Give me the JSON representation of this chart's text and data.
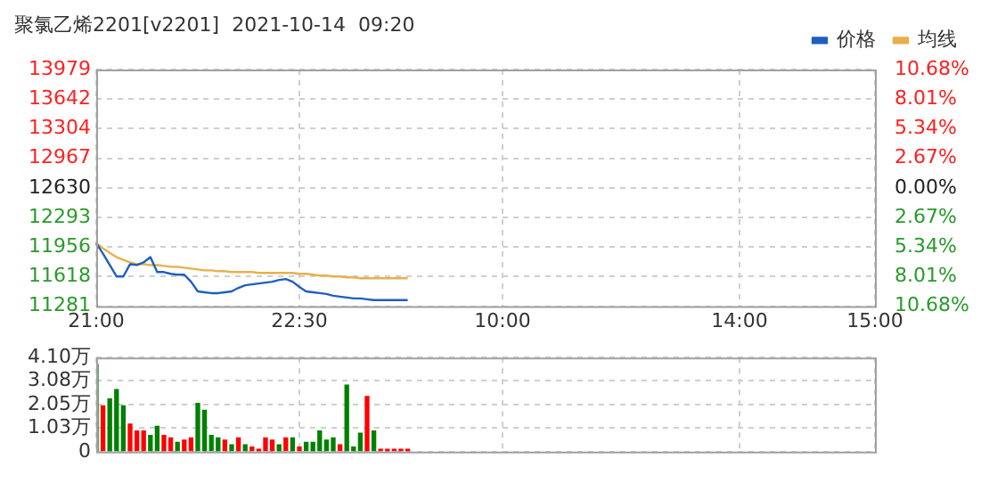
{
  "chart_data": [
    {
      "type": "line",
      "title": "聚氯乙烯2201[v2201]  2021-10-14  09:20",
      "legend": "top right",
      "grid": true,
      "categories": [
        "21:00",
        null,
        null,
        null,
        null,
        null,
        null,
        null,
        null,
        null,
        null,
        null,
        null,
        null,
        null,
        null,
        null,
        null,
        null,
        null,
        null,
        null,
        null,
        null,
        null,
        null,
        null,
        null,
        null,
        null,
        "22:30",
        null,
        null,
        null,
        null,
        null,
        null,
        null,
        null,
        null,
        null,
        null,
        null,
        null,
        null,
        null,
        null,
        null,
        null,
        null,
        null,
        null,
        null,
        null,
        null,
        null,
        null,
        null,
        null,
        null,
        "10:00",
        null,
        null,
        null,
        null,
        null,
        null,
        null,
        null,
        null,
        null,
        null,
        null,
        null,
        null,
        null,
        null,
        null,
        null,
        null,
        null,
        null,
        null,
        null,
        null,
        null,
        null,
        null,
        null,
        null,
        null,
        null,
        null,
        null,
        null,
        "14:00",
        null,
        null,
        null,
        null,
        null,
        null,
        null,
        null,
        null,
        null,
        null,
        null,
        null,
        null,
        null,
        null,
        null,
        null,
        null,
        "15:00"
      ],
      "ylim": [
        11281,
        13979
      ],
      "yticks": [
        11281,
        11618,
        11956,
        12293,
        12630,
        12967,
        13304,
        13642,
        13979
      ],
      "y2lim": [
        -10.68,
        10.68
      ],
      "y2ticks": [
        {
          "value": -10.68,
          "label": "10.68%"
        },
        {
          "value": -8.01,
          "label": "8.01%"
        },
        {
          "value": -5.34,
          "label": "5.34%"
        },
        {
          "value": -2.67,
          "label": "2.67%"
        },
        {
          "value": 0,
          "label": "0.00%"
        },
        {
          "value": 2.67,
          "label": "2.67%"
        },
        {
          "value": 5.34,
          "label": "5.34%"
        },
        {
          "value": 8.01,
          "label": "8.01%"
        },
        {
          "value": 10.68,
          "label": "10.68%"
        }
      ],
      "series": [
        {
          "name": "价格",
          "color": "#1f5fbf",
          "values": [
            12000,
            11880,
            11750,
            11620,
            11620,
            11760,
            11750,
            11780,
            11840,
            11670,
            11670,
            11650,
            11640,
            11640,
            11560,
            11450,
            11440,
            11430,
            11430,
            11440,
            11450,
            11490,
            11520,
            11530,
            11540,
            11550,
            11560,
            11580,
            11590,
            11560,
            11500,
            11450,
            11440,
            11430,
            11420,
            11400,
            11390,
            11380,
            11370,
            11370,
            11360,
            11350,
            11350,
            11350,
            11350,
            11350,
            11350,
            null,
            null,
            null,
            null,
            null,
            null,
            null,
            null,
            null,
            null,
            null,
            null,
            null,
            null,
            null,
            null,
            null,
            null,
            null,
            null,
            null,
            null,
            null,
            null,
            null,
            null,
            null,
            null,
            null,
            null,
            null,
            null,
            null,
            null,
            null,
            null,
            null,
            null,
            null,
            null,
            null,
            null,
            null,
            null,
            null,
            null,
            null,
            null,
            null,
            null,
            null,
            null,
            null,
            null,
            null,
            null,
            null,
            null,
            null,
            null,
            null,
            null,
            null,
            null,
            null,
            null,
            null,
            null,
            null
          ]
        },
        {
          "name": "均线",
          "color": "#e8b04a",
          "values": [
            12000,
            11940,
            11890,
            11840,
            11810,
            11780,
            11760,
            11760,
            11750,
            11750,
            11740,
            11730,
            11730,
            11720,
            11710,
            11700,
            11690,
            11690,
            11680,
            11680,
            11670,
            11670,
            11670,
            11670,
            11660,
            11660,
            11660,
            11660,
            11660,
            11660,
            11650,
            11650,
            11640,
            11630,
            11630,
            11620,
            11620,
            11610,
            11610,
            11600,
            11600,
            11600,
            11600,
            11600,
            11600,
            11600,
            11600,
            null,
            null,
            null,
            null,
            null,
            null,
            null,
            null,
            null,
            null,
            null,
            null,
            null,
            null,
            null,
            null,
            null,
            null,
            null,
            null,
            null,
            null,
            null,
            null,
            null,
            null,
            null,
            null,
            null,
            null,
            null,
            null,
            null,
            null,
            null,
            null,
            null,
            null,
            null,
            null,
            null,
            null,
            null,
            null,
            null,
            null,
            null,
            null,
            null,
            null,
            null,
            null,
            null,
            null,
            null,
            null,
            null,
            null,
            null,
            null,
            null,
            null,
            null,
            null,
            null,
            null,
            null,
            null,
            null
          ]
        }
      ]
    },
    {
      "type": "bar",
      "grid": true,
      "tick_labels": "y",
      "categories": [
        null,
        null,
        null,
        null,
        null,
        null,
        null,
        null,
        null,
        null,
        null,
        null,
        null,
        null,
        null,
        null,
        null,
        null,
        null,
        null,
        null,
        null,
        null,
        null,
        null,
        null,
        null,
        null,
        null,
        null,
        null,
        null,
        null,
        null,
        null,
        null,
        null,
        null,
        null,
        null,
        null,
        null,
        null,
        null,
        null,
        null,
        null,
        null,
        null,
        null,
        null,
        null,
        null,
        null,
        null,
        null,
        null,
        null,
        null,
        null,
        null,
        null,
        null,
        null,
        null,
        null,
        null,
        null,
        null,
        null,
        null,
        null,
        null,
        null,
        null,
        null,
        null,
        null,
        null,
        null,
        null,
        null,
        null,
        null,
        null,
        null,
        null,
        null,
        null,
        null,
        null,
        null,
        null,
        null,
        null,
        null,
        null,
        null,
        null,
        null,
        null,
        null,
        null,
        null,
        null,
        null,
        null,
        null,
        null,
        null,
        null,
        null,
        null,
        null,
        null,
        null
      ],
      "ylim": [
        0,
        4.1
      ],
      "yticks": [
        0,
        {
          "value": 1.03,
          "label": "1.03万"
        },
        {
          "value": 2.05,
          "label": "2.05万"
        },
        {
          "value": 3.08,
          "label": "3.08万"
        },
        {
          "value": 4.1,
          "label": "4.10万"
        }
      ],
      "values": [
        3.8,
        2.0,
        2.3,
        2.7,
        2.0,
        1.2,
        0.9,
        0.9,
        0.7,
        1.1,
        0.7,
        0.6,
        0.4,
        0.5,
        0.6,
        2.1,
        1.8,
        0.7,
        0.6,
        0.5,
        0.3,
        0.6,
        0.3,
        0.2,
        0.1,
        0.6,
        0.5,
        0.3,
        0.6,
        0.6,
        0.2,
        0.4,
        0.4,
        0.9,
        0.5,
        0.6,
        0.3,
        2.9,
        0.2,
        0.8,
        2.4,
        0.9,
        0.1,
        0.1,
        0.1,
        0.1,
        0.1,
        null,
        null,
        null,
        null,
        null,
        null,
        null,
        null,
        null,
        null,
        null,
        null,
        null,
        null,
        null,
        null,
        null,
        null,
        null,
        null,
        null,
        null,
        null,
        null,
        null,
        null,
        null,
        null,
        null,
        null,
        null,
        null,
        null,
        null,
        null,
        null,
        null,
        null,
        null,
        null,
        null,
        null,
        null,
        null,
        null,
        null,
        null,
        null,
        null,
        null,
        null,
        null,
        null,
        null,
        null,
        null,
        null,
        null,
        null,
        null,
        null,
        null,
        null,
        null,
        null,
        null,
        null,
        null,
        null
      ],
      "colors": [
        "#008000",
        "#ff0000",
        "#008000",
        "#008000",
        "#008000",
        "#ff0000",
        "#ff0000",
        "#ff0000",
        "#008000",
        "#008000",
        "#ff0000",
        "#ff0000",
        "#008000",
        "#ff0000",
        "#ff0000",
        "#008000",
        "#008000",
        "#008000",
        "#008000",
        "#ff0000",
        "#008000",
        "#ff0000",
        "#008000",
        "#ff0000",
        "#ff0000",
        "#ff0000",
        "#ff0000",
        "#008000",
        "#ff0000",
        "#008000",
        "#ff0000",
        "#008000",
        "#008000",
        "#008000",
        "#008000",
        "#008000",
        "#ff0000",
        "#008000",
        "#008000",
        "#008000",
        "#ff0000",
        "#008000",
        "#ff0000",
        "#ff0000",
        "#ff0000",
        "#ff0000",
        "#ff0000",
        null,
        null,
        null,
        null,
        null,
        null,
        null,
        null,
        null,
        null,
        null,
        null,
        null,
        null,
        null,
        null,
        null,
        null,
        null,
        null,
        null,
        null,
        null,
        null,
        null,
        null,
        null,
        null,
        null,
        null,
        null,
        null,
        null,
        null,
        null,
        null,
        null,
        null,
        null,
        null,
        null,
        null,
        null,
        null,
        null,
        null,
        null,
        null,
        null,
        null,
        null,
        null,
        null,
        null,
        null,
        null,
        null,
        null,
        null,
        null,
        null,
        null,
        null,
        null,
        null,
        null,
        null,
        null,
        null
      ]
    }
  ]
}
